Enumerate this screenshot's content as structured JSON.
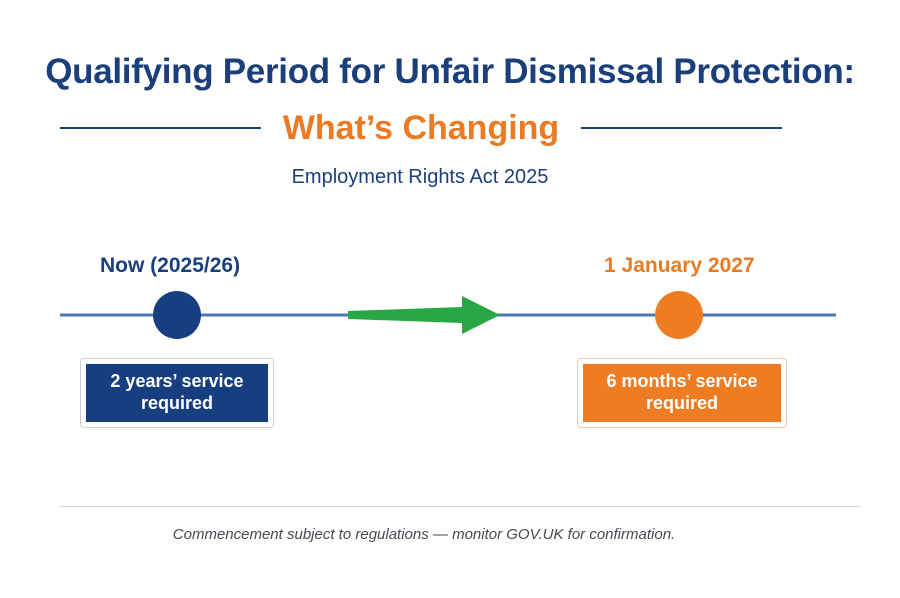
{
  "header": {
    "title": "Qualifying Period for Unfair Dismissal Protection:",
    "subtitle": "What’s Changing",
    "act": "Employment Rights Act 2025"
  },
  "timeline": {
    "left": {
      "label": "Now (2025/26)",
      "box_text": "2 years’ service required",
      "color": "#173f80"
    },
    "right": {
      "label": "1 January 2027",
      "box_text": "6 months’ service required",
      "color": "#ed7c22"
    },
    "arrow_color": "#27a844",
    "line_color": "#4a78b5"
  },
  "footer": {
    "note": "Commencement subject to regulations — monitor GOV.UK for confirmation."
  }
}
